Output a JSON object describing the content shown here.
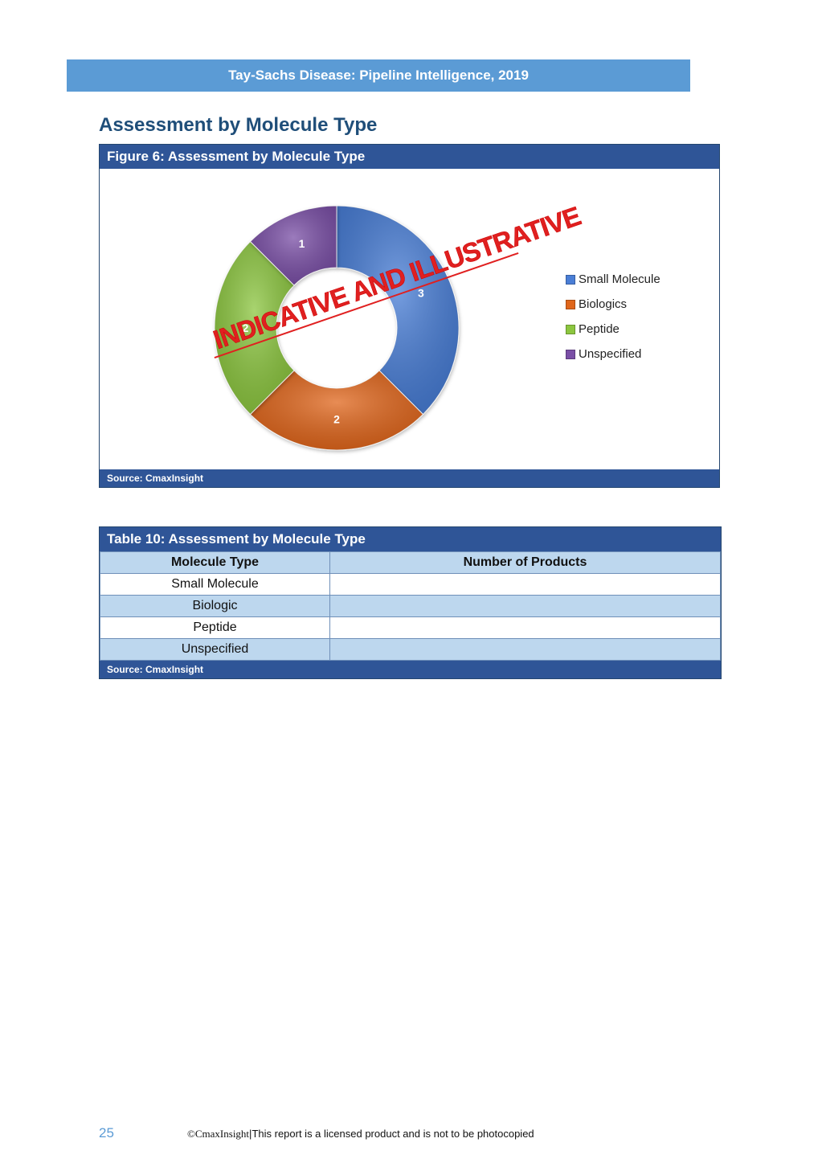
{
  "banner": {
    "title": "Tay-Sachs Disease: Pipeline Intelligence, 2019"
  },
  "section": {
    "title": "Assessment by Molecule Type"
  },
  "figure": {
    "caption": "Figure 6: Assessment by Molecule Type",
    "source": "Source: CmaxInsight",
    "watermark": "INDICATIVE AND ILLUSTRATIVE"
  },
  "chart_data": {
    "type": "pie",
    "variant": "donut",
    "categories": [
      "Small Molecule",
      "Biologics",
      "Peptide",
      "Unspecified"
    ],
    "values": [
      3,
      2,
      2,
      1
    ],
    "labels": [
      "3",
      "2",
      "2",
      "1"
    ],
    "colors": [
      "#4a7ed6",
      "#e0661b",
      "#8cc63f",
      "#7a4fa6"
    ],
    "legend_position": "right"
  },
  "table": {
    "caption": "Table 10: Assessment by Molecule Type",
    "headers": [
      "Molecule Type",
      "Number of Products"
    ],
    "rows": [
      [
        "Small Molecule",
        ""
      ],
      [
        "Biologic",
        ""
      ],
      [
        "Peptide",
        ""
      ],
      [
        "Unspecified",
        ""
      ]
    ],
    "source": "Source: CmaxInsight"
  },
  "footer": {
    "page_number": "25",
    "brand": "©CmaxInsight",
    "separator": "|",
    "notice": "This report is a licensed product and is not to be photocopied"
  }
}
